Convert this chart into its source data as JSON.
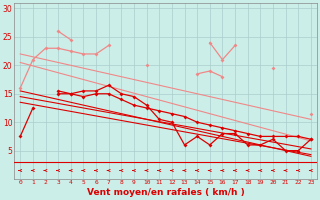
{
  "x": [
    0,
    1,
    2,
    3,
    4,
    5,
    6,
    7,
    8,
    9,
    10,
    11,
    12,
    13,
    14,
    15,
    16,
    17,
    18,
    19,
    20,
    21,
    22,
    23
  ],
  "bg_color": "#cceee8",
  "grid_color": "#aacccc",
  "light_red": "#f08888",
  "dark_red": "#dd0000",
  "xlabel": "Vent moyen/en rafales ( km/h )",
  "ylim": [
    0,
    31
  ],
  "xlim": [
    -0.5,
    23.5
  ],
  "yticks": [
    5,
    10,
    15,
    20,
    25,
    30
  ],
  "xticks": [
    0,
    1,
    2,
    3,
    4,
    5,
    6,
    7,
    8,
    9,
    10,
    11,
    12,
    13,
    14,
    15,
    16,
    17,
    18,
    19,
    20,
    21,
    22,
    23
  ],
  "trend_light1": [
    22.0,
    21.5,
    21.0,
    20.5,
    20.0,
    19.5,
    19.0,
    18.5,
    18.0,
    17.5,
    17.0,
    16.5,
    16.0,
    15.5,
    15.0,
    14.5,
    14.0,
    13.5,
    13.0,
    12.5,
    12.0,
    11.5,
    11.0,
    10.5
  ],
  "trend_light2": [
    20.5,
    19.9,
    19.3,
    18.7,
    18.1,
    17.5,
    16.9,
    16.3,
    15.7,
    15.1,
    14.5,
    13.9,
    13.3,
    12.7,
    12.1,
    11.5,
    10.9,
    10.3,
    9.7,
    9.1,
    8.5,
    7.9,
    7.3,
    6.7
  ],
  "trend_dark1": [
    15.5,
    15.0,
    14.5,
    14.0,
    13.5,
    13.0,
    12.5,
    12.0,
    11.5,
    11.0,
    10.5,
    10.0,
    9.5,
    9.0,
    8.5,
    8.0,
    7.5,
    7.0,
    6.5,
    6.0,
    5.5,
    5.0,
    4.5,
    4.0
  ],
  "trend_dark2": [
    14.5,
    14.1,
    13.7,
    13.3,
    12.9,
    12.5,
    12.1,
    11.7,
    11.3,
    10.9,
    10.5,
    10.1,
    9.7,
    9.3,
    8.9,
    8.5,
    8.1,
    7.7,
    7.3,
    6.9,
    6.5,
    6.1,
    5.7,
    5.3
  ],
  "trend_dark3": [
    13.5,
    13.1,
    12.7,
    12.3,
    11.9,
    11.5,
    11.1,
    10.7,
    10.3,
    9.9,
    9.5,
    9.1,
    8.7,
    8.3,
    7.9,
    7.5,
    7.1,
    6.7,
    6.3,
    5.9,
    5.5,
    5.1,
    4.7,
    4.3
  ],
  "series_light_jagged": [
    16,
    21,
    23,
    23,
    22.5,
    22,
    22,
    23.5,
    null,
    null,
    20,
    null,
    null,
    null,
    null,
    24,
    21,
    23.5,
    null,
    null,
    19.5,
    null,
    null,
    11.5
  ],
  "series_light_upper": [
    null,
    null,
    null,
    26,
    24.5,
    null,
    null,
    null,
    null,
    null,
    null,
    null,
    null,
    null,
    18.5,
    19,
    18,
    null,
    null,
    null,
    null,
    null,
    null,
    null
  ],
  "series_dark1": [
    7.5,
    12.5,
    null,
    15.5,
    15,
    15.5,
    15.5,
    16.5,
    15,
    14.5,
    13,
    10.5,
    10,
    6,
    7.5,
    6,
    8,
    8,
    6,
    6,
    7,
    5,
    5,
    7
  ],
  "series_dark2": [
    null,
    null,
    null,
    15,
    15,
    14.5,
    15,
    15,
    14,
    13,
    12.5,
    12,
    11.5,
    11,
    10,
    9.5,
    9,
    8.5,
    8,
    7.5,
    7.5,
    7.5,
    7.5,
    7
  ]
}
